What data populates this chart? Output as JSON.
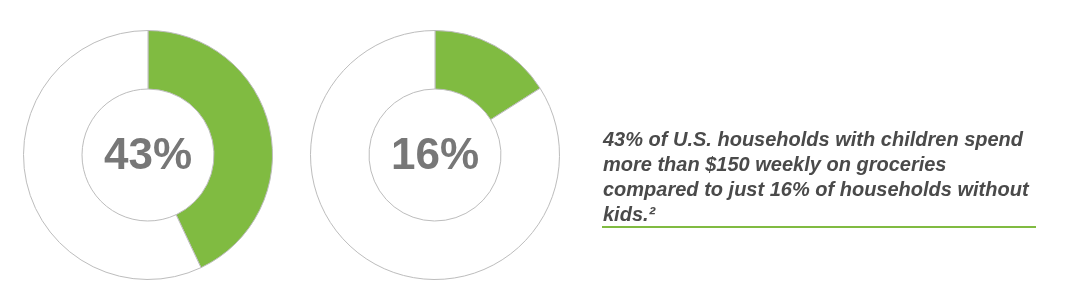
{
  "chart_data": [
    {
      "type": "donut",
      "categories": [
        null,
        null
      ],
      "values": [
        43,
        57
      ],
      "colors": [
        "#80bb41",
        "#ffffff"
      ],
      "value_labels": [
        "43%",
        null
      ]
    },
    {
      "type": "donut",
      "categories": [
        null,
        null
      ],
      "values": [
        16,
        84
      ],
      "colors": [
        "#80bb41",
        "#ffffff"
      ],
      "value_labels": [
        "16%",
        null
      ]
    },
    {
      "type": "other",
      "annotations": [
        "43% of U.S. households with children spend more than $150 weekly on groceries compared to just 16% of households without kids.²"
      ]
    }
  ]
}
